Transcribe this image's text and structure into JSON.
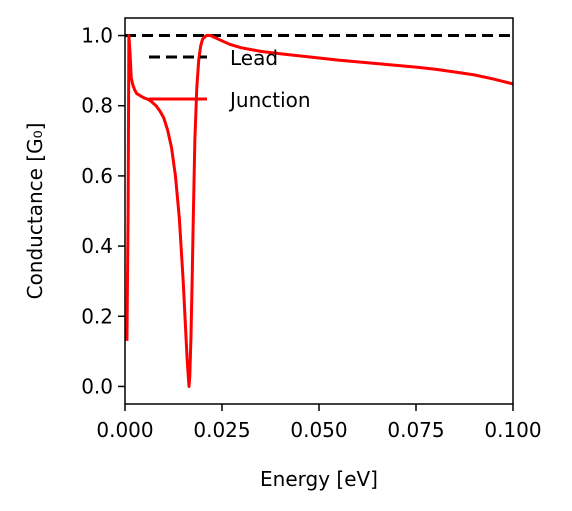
{
  "chart_data": {
    "type": "line",
    "title": "",
    "xlabel": "Energy [eV]",
    "ylabel": "Conductance [G₀]",
    "xlim": [
      0.0,
      0.1
    ],
    "ylim": [
      -0.05,
      1.05
    ],
    "xticks": [
      0.0,
      0.025,
      0.05,
      0.075,
      0.1
    ],
    "xtick_labels": [
      "0.000",
      "0.025",
      "0.050",
      "0.075",
      "0.100"
    ],
    "yticks": [
      0.0,
      0.2,
      0.4,
      0.6,
      0.8,
      1.0
    ],
    "ytick_labels": [
      "0.0",
      "0.2",
      "0.4",
      "0.6",
      "0.8",
      "1.0"
    ],
    "grid": false,
    "legend_position": "upper-center",
    "series": [
      {
        "name": "Lead",
        "color": "#000000",
        "dash": "dashed",
        "x": [
          0.0,
          0.1
        ],
        "y": [
          1.0,
          1.0
        ]
      },
      {
        "name": "Junction",
        "color": "#ff0000",
        "dash": "solid",
        "x": [
          0.0005,
          0.0008,
          0.001,
          0.0013,
          0.0016,
          0.002,
          0.0025,
          0.003,
          0.004,
          0.005,
          0.006,
          0.007,
          0.008,
          0.009,
          0.01,
          0.011,
          0.012,
          0.013,
          0.014,
          0.015,
          0.0155,
          0.016,
          0.0163,
          0.0165,
          0.0167,
          0.017,
          0.0173,
          0.0176,
          0.018,
          0.0185,
          0.019,
          0.0195,
          0.02,
          0.021,
          0.022,
          0.023,
          0.025,
          0.027,
          0.03,
          0.035,
          0.04,
          0.045,
          0.05,
          0.055,
          0.06,
          0.065,
          0.07,
          0.075,
          0.08,
          0.085,
          0.09,
          0.095,
          0.1
        ],
        "y": [
          0.13,
          0.5,
          1.0,
          0.95,
          0.88,
          0.86,
          0.845,
          0.835,
          0.828,
          0.822,
          0.818,
          0.81,
          0.8,
          0.785,
          0.765,
          0.73,
          0.68,
          0.6,
          0.48,
          0.3,
          0.19,
          0.08,
          0.03,
          0.0,
          0.03,
          0.14,
          0.3,
          0.48,
          0.7,
          0.85,
          0.93,
          0.97,
          0.99,
          1.0,
          1.0,
          0.995,
          0.985,
          0.975,
          0.965,
          0.955,
          0.948,
          0.942,
          0.936,
          0.93,
          0.925,
          0.92,
          0.915,
          0.91,
          0.904,
          0.896,
          0.888,
          0.876,
          0.862
        ]
      }
    ]
  }
}
